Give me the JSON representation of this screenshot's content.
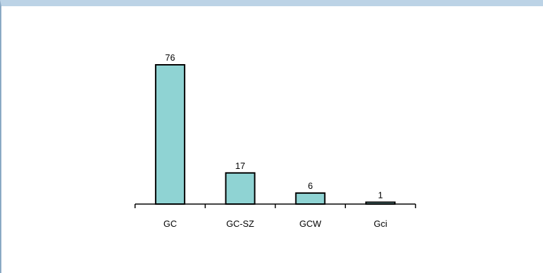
{
  "chart_data": {
    "type": "bar",
    "categories": [
      "GC",
      "GC-SZ",
      "GCW",
      "Gci"
    ],
    "values": [
      76,
      17,
      6,
      1
    ],
    "data_labels": [
      "76",
      "17",
      "6",
      "1"
    ],
    "title": "",
    "xlabel": "",
    "ylabel": "",
    "ylim": [
      0,
      76
    ],
    "grid": false,
    "legend": "none",
    "colors": {
      "bar_fill": "#8fd3d3",
      "bar_stroke": "#000000",
      "frame_top": "#bcd3e6"
    }
  }
}
